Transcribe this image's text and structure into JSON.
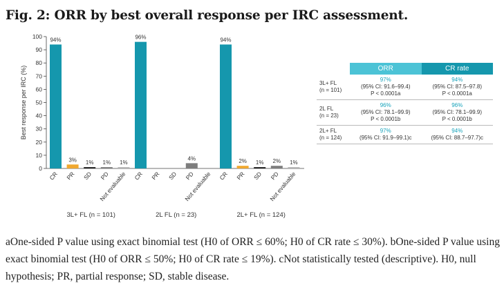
{
  "figure_title": "Fig. 2: ORR by best overall response per IRC assessment.",
  "chart_data": {
    "type": "bar",
    "ylabel": "Best response per IRC (%)",
    "ylim": [
      0,
      100
    ],
    "yticks": [
      0,
      10,
      20,
      30,
      40,
      50,
      60,
      70,
      80,
      90,
      100
    ],
    "categories": [
      "CR",
      "PR",
      "SD",
      "PD",
      "Not evaluable"
    ],
    "colors": {
      "CR": "#1597ad",
      "PR": "#f0a830",
      "SD": "#1e1e1e",
      "PD": "#7d7d7d",
      "Not evaluable": "#b4b4b4"
    },
    "groups": [
      {
        "label": "3L+ FL (n = 101)",
        "values": [
          94,
          3,
          1,
          1,
          1
        ],
        "labels": [
          "94%",
          "3%",
          "1%",
          "1%",
          "1%"
        ]
      },
      {
        "label": "2L FL (n = 23)",
        "values": [
          96,
          0,
          0,
          4,
          0
        ],
        "labels": [
          "96%",
          "",
          "",
          "4%",
          ""
        ]
      },
      {
        "label": "2L+ FL (n = 124)",
        "values": [
          94,
          2,
          1,
          2,
          1
        ],
        "labels": [
          "94%",
          "2%",
          "1%",
          "2%",
          "1%"
        ]
      }
    ]
  },
  "table": {
    "headers": [
      "ORR",
      "CR rate"
    ],
    "rows": [
      {
        "label1": "3L+ FL",
        "label2": "(n = 101)",
        "orr_pct": "97%",
        "orr_ci": "(95% CI: 91.6–99.4)",
        "orr_p": "P < 0.0001a",
        "cr_pct": "94%",
        "cr_ci": "(95% CI: 87.5–97.8)",
        "cr_p": "P < 0.0001a"
      },
      {
        "label1": "2L FL",
        "label2": "(n = 23)",
        "orr_pct": "96%",
        "orr_ci": "(95% CI: 78.1–99.9)",
        "orr_p": "P < 0.0001b",
        "cr_pct": "96%",
        "cr_ci": "(95% CI: 78.1–99.9)",
        "cr_p": "P < 0.0001b"
      },
      {
        "label1": "2L+ FL",
        "label2": "(n = 124)",
        "orr_pct": "97%",
        "orr_ci": "(95% CI: 91.9–99.1)c",
        "orr_p": "",
        "cr_pct": "94%",
        "cr_ci": "(95% CI: 88.7–97.7)c",
        "cr_p": ""
      }
    ]
  },
  "footnote": "aOne-sided P value using exact binomial test (H0 of ORR ≤ 60%; H0 of CR rate ≤ 30%). bOne-sided P value using exact binomial test (H0 of ORR ≤ 50%; H0 of CR rate ≤ 19%). cNot statistically tested (descriptive). H0, null hypothesis; PR, partial response; SD, stable disease."
}
